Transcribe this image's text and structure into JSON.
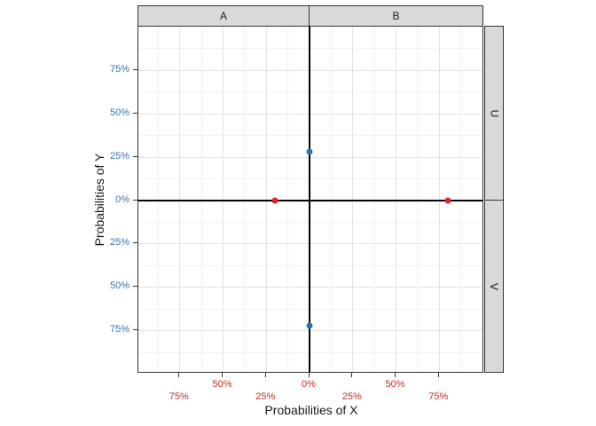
{
  "window": {
    "background": "#ffffff"
  },
  "colors": {
    "strip_fill": "#d9d9d9",
    "border": "#333333",
    "grid_major": "#e3e3e3",
    "grid_minor": "#f1f1f1",
    "origin_line": "#000000",
    "x_tick_label": "#cc2929",
    "y_tick_label": "#3273b8",
    "point_red": "#e02620",
    "point_blue": "#2176b4"
  },
  "facets": {
    "top": [
      "A",
      "B"
    ],
    "right": [
      "U",
      "V"
    ]
  },
  "axes": {
    "x": {
      "ticks": [
        {
          "label": "75%",
          "value": -75,
          "row": 2
        },
        {
          "label": "50%",
          "value": -50,
          "row": 1
        },
        {
          "label": "25%",
          "value": -25,
          "row": 2
        },
        {
          "label": "0%",
          "value": 0,
          "row": 1
        },
        {
          "label": "25%",
          "value": 25,
          "row": 2
        },
        {
          "label": "50%",
          "value": 50,
          "row": 1
        },
        {
          "label": "75%",
          "value": 75,
          "row": 2
        }
      ]
    },
    "y": {
      "ticks": [
        {
          "label": "75%",
          "value": 75
        },
        {
          "label": "50%",
          "value": 50
        },
        {
          "label": "25%",
          "value": 25
        },
        {
          "label": "0%",
          "value": 0
        },
        {
          "label": "25%",
          "value": -25
        },
        {
          "label": "50%",
          "value": -50
        },
        {
          "label": "75%",
          "value": -75
        }
      ]
    }
  },
  "chart_data": {
    "type": "scatter",
    "title": "",
    "xlabel": "Probabilities of X",
    "ylabel": "Probabilities of Y",
    "xlim": [
      -100,
      100
    ],
    "ylim": [
      -100,
      100
    ],
    "x_tick_labels": [
      "75%",
      "50%",
      "25%",
      "0%",
      "25%",
      "50%",
      "75%"
    ],
    "y_tick_labels": [
      "75%",
      "50%",
      "25%",
      "0%",
      "25%",
      "50%",
      "75%"
    ],
    "tick_label_note": "tick labels show absolute percentages mirrored about the origin",
    "grid": {
      "major_step": 25,
      "minor_step": 12.5,
      "grid_on": true
    },
    "facet_columns": [
      "A",
      "B"
    ],
    "facet_rows": [
      "U",
      "V"
    ],
    "origin_lines": {
      "x": 0,
      "y": 0
    },
    "series": [
      {
        "name": "probabilities-of-x",
        "color": "#e02620",
        "points": [
          {
            "x": -20,
            "y": 0
          },
          {
            "x": 80,
            "y": 0
          }
        ]
      },
      {
        "name": "probabilities-of-y",
        "color": "#2176b4",
        "points": [
          {
            "x": 0,
            "y": 28
          },
          {
            "x": 0,
            "y": -72
          }
        ]
      }
    ]
  }
}
